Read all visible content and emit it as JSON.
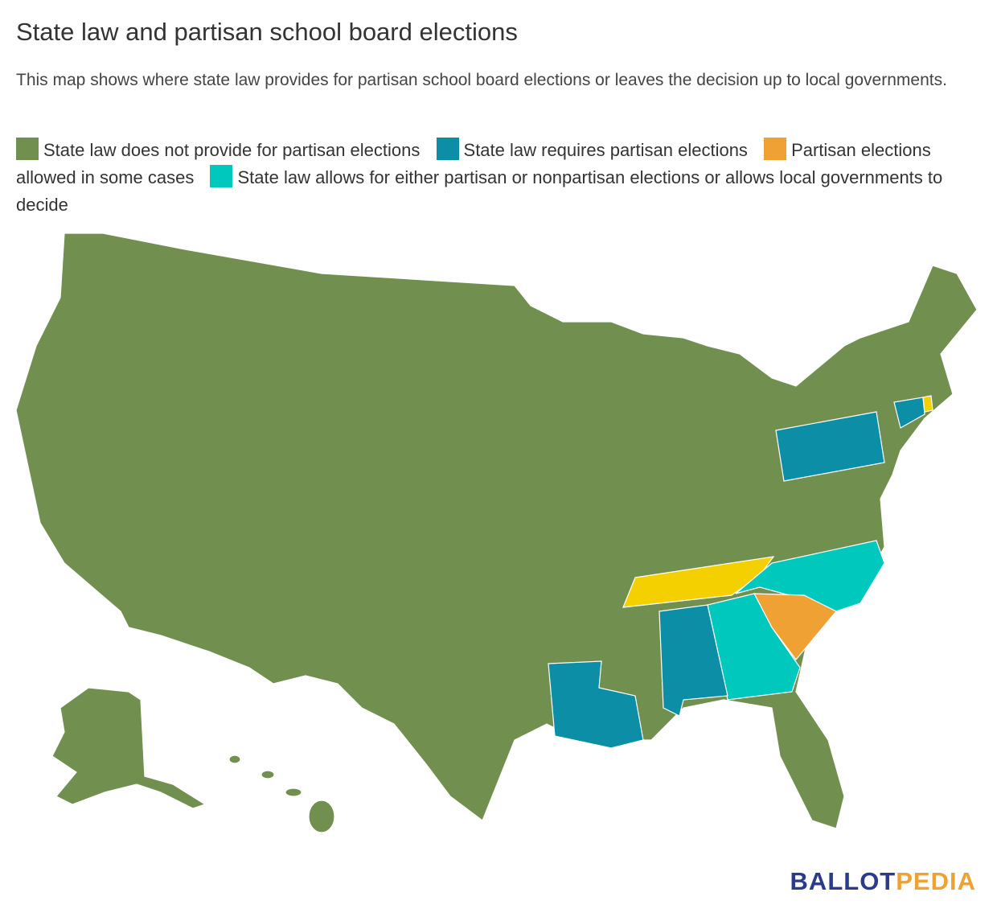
{
  "header": {
    "title": "State law and partisan school board elections",
    "subtitle": "This map shows where state law provides for partisan school board elections or leaves the decision up to local governments."
  },
  "legend": [
    {
      "label": "State law does not provide for partisan elections",
      "color": "#718f4f"
    },
    {
      "label": "State law requires partisan elections",
      "color": "#0b8ea6"
    },
    {
      "label": "Partisan elections allowed in some cases",
      "color": "#f0a133"
    },
    {
      "label": "State law allows for either partisan or nonpartisan elections or allows local governments to decide",
      "color": "#00c8bd"
    }
  ],
  "logo": {
    "first": "BALLOT",
    "second": "PEDIA"
  }
}
